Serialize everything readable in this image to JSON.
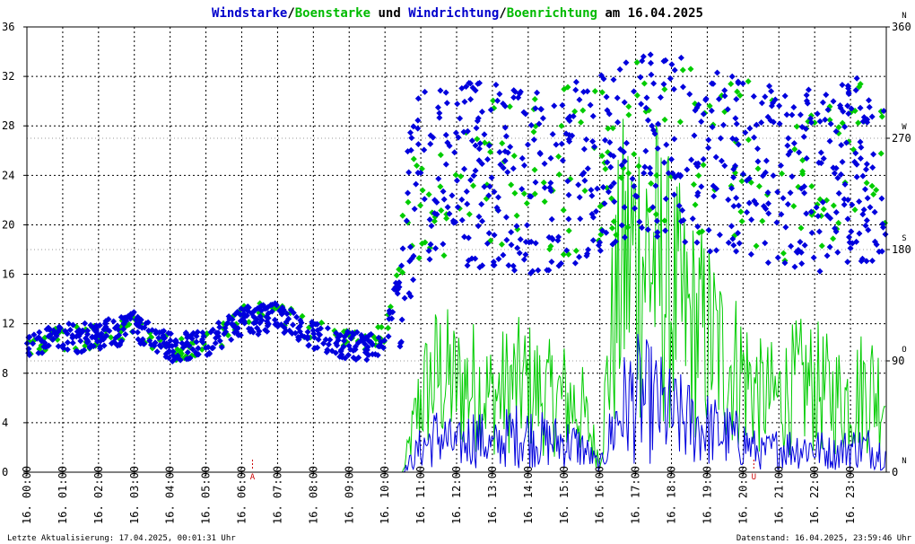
{
  "title_parts": [
    {
      "text": "Windstarke",
      "color": "#0000cc"
    },
    {
      "text": "/",
      "color": "#000000"
    },
    {
      "text": "Boenstarke",
      "color": "#00bb00"
    },
    {
      "text": " und ",
      "color": "#000000"
    },
    {
      "text": "Windrichtung",
      "color": "#0000cc"
    },
    {
      "text": "/",
      "color": "#000000"
    },
    {
      "text": "Boenrichtung",
      "color": "#00bb00"
    },
    {
      "text": " am 16.04.2025",
      "color": "#000000"
    }
  ],
  "footer": {
    "left": "Letzte Aktualisierung: 17.04.2025, 00:01:31 Uhr",
    "right": "Datenstand: 16.04.2025, 23:59:46 Uhr"
  },
  "markers": [
    {
      "label": "A",
      "hour": 6.3,
      "color": "#cc0000"
    },
    {
      "label": "U",
      "hour": 20.3,
      "color": "#cc0000"
    }
  ],
  "chart_data": {
    "type": "line",
    "left_axis": {
      "ylim": [
        0,
        36
      ],
      "ticks": [
        "0",
        "4",
        "8",
        "12",
        "16",
        "20",
        "24",
        "28",
        "32",
        "36"
      ]
    },
    "right_axis": {
      "ylim": [
        0,
        360
      ],
      "ticks": [
        "0",
        "90",
        "180",
        "270",
        "360"
      ],
      "compass_labels": [
        "N",
        "O",
        "S",
        "W",
        "N"
      ]
    },
    "x_axis": {
      "hour_range": [
        0,
        24
      ],
      "tick_labels": [
        "16. 00:00",
        "16. 01:00",
        "16. 02:00",
        "16. 03:00",
        "16. 04:00",
        "16. 05:00",
        "16. 06:00",
        "16. 07:00",
        "16. 08:00",
        "16. 09:00",
        "16. 10:00",
        "16. 11:00",
        "16. 12:00",
        "16. 13:00",
        "16. 14:00",
        "16. 15:00",
        "16. 16:00",
        "16. 17:00",
        "16. 18:00",
        "16. 19:00",
        "16. 20:00",
        "16. 21:00",
        "16. 22:00",
        "16. 23:00"
      ]
    },
    "series": [
      {
        "name": "Windstarke",
        "color": "#0000dd",
        "kind": "line",
        "x_hours": [
          0,
          10.5,
          11,
          11.5,
          12,
          12.5,
          13,
          13.5,
          14,
          14.5,
          15,
          15.5,
          16,
          16.3,
          16.6,
          17,
          17.5,
          18,
          18.5,
          19,
          19.5,
          20,
          20.5,
          21,
          21.5,
          22,
          22.5,
          23,
          23.5,
          23.98
        ],
        "values": [
          0,
          0,
          2,
          3,
          2,
          3,
          2,
          3,
          3,
          2.5,
          2.5,
          2,
          0.5,
          3,
          5,
          6,
          5.5,
          4.5,
          4,
          3.5,
          3,
          2.5,
          1.5,
          2,
          2,
          2,
          1.5,
          2,
          2,
          1.5
        ]
      },
      {
        "name": "Boenstarke",
        "color": "#00cc00",
        "kind": "line",
        "x_hours": [
          0,
          10.5,
          11,
          11.5,
          12,
          12.5,
          13,
          13.5,
          14,
          14.5,
          15,
          15.5,
          16,
          16.3,
          16.6,
          17,
          17.5,
          18,
          18.5,
          19,
          19.5,
          20,
          20.5,
          21,
          21.5,
          22,
          22.5,
          23,
          23.5,
          23.98
        ],
        "values": [
          0,
          0,
          6,
          8,
          7,
          7,
          6,
          7,
          7,
          6,
          6,
          5,
          1,
          10,
          16,
          18,
          17,
          14,
          12,
          11,
          9,
          8,
          6,
          6,
          7,
          7,
          6,
          6,
          7,
          6
        ]
      },
      {
        "name": "Windrichtung",
        "color": "#0000dd",
        "kind": "scatter",
        "axis": "right",
        "x_hours": [
          0,
          1,
          2,
          3,
          4,
          5,
          6,
          7,
          8,
          9,
          10,
          11,
          12,
          13,
          14,
          15,
          16,
          17,
          18,
          19,
          20,
          21,
          22,
          23,
          23.98
        ],
        "values": [
          105,
          108,
          110,
          118,
          100,
          102,
          122,
          125,
          112,
          102,
          102,
          240,
          240,
          240,
          235,
          240,
          245,
          265,
          265,
          250,
          245,
          235,
          235,
          245,
          245
        ]
      },
      {
        "name": "Boenrichtung",
        "color": "#00cc00",
        "kind": "scatter",
        "axis": "right",
        "x_hours": [
          0,
          1,
          2,
          3,
          4,
          5,
          6,
          7,
          8,
          9,
          10,
          11,
          12,
          13,
          14,
          15,
          16,
          17,
          18,
          19,
          20,
          21,
          22,
          23,
          23.98
        ],
        "values": [
          105,
          108,
          110,
          120,
          100,
          102,
          125,
          128,
          115,
          105,
          110,
          245,
          245,
          245,
          235,
          245,
          250,
          270,
          270,
          255,
          250,
          240,
          240,
          250,
          248
        ]
      }
    ]
  }
}
